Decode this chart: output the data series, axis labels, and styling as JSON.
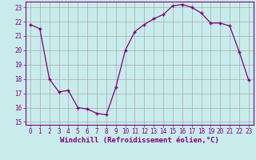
{
  "x": [
    0,
    1,
    2,
    3,
    4,
    5,
    6,
    7,
    8,
    9,
    10,
    11,
    12,
    13,
    14,
    15,
    16,
    17,
    18,
    19,
    20,
    21,
    22,
    23
  ],
  "y": [
    21.8,
    21.5,
    18.0,
    17.1,
    17.2,
    16.0,
    15.9,
    15.6,
    15.5,
    17.4,
    20.0,
    21.3,
    21.8,
    22.2,
    22.5,
    23.1,
    23.2,
    23.0,
    22.6,
    21.9,
    21.9,
    21.7,
    19.9,
    17.9
  ],
  "line_color": "#800080",
  "marker": "+",
  "xlabel": "Windchill (Refroidissement éolien,°C)",
  "xlabel_color": "#800080",
  "bg_color": "#c8ecec",
  "grid_color": "#aaaaaa",
  "ylim_min": 14.8,
  "ylim_max": 23.4,
  "yticks": [
    15,
    16,
    17,
    18,
    19,
    20,
    21,
    22,
    23
  ],
  "xlim_min": -0.5,
  "xlim_max": 23.5,
  "xticks": [
    0,
    1,
    2,
    3,
    4,
    5,
    6,
    7,
    8,
    9,
    10,
    11,
    12,
    13,
    14,
    15,
    16,
    17,
    18,
    19,
    20,
    21,
    22,
    23
  ],
  "tick_color": "#800080",
  "tick_fontsize": 5.5,
  "xlabel_fontsize": 6.5,
  "axis_color": "#800080",
  "spine_color": "#800080"
}
